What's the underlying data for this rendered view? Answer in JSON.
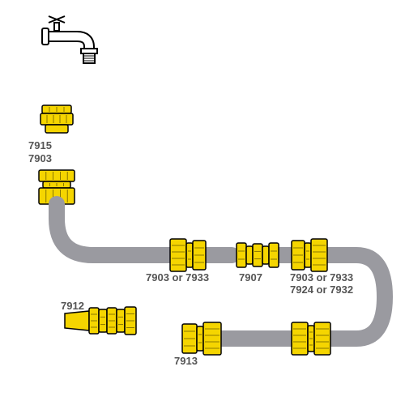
{
  "diagram": {
    "type": "infographic",
    "background_color": "#ffffff",
    "hose_color": "#9a9aa0",
    "hose_stroke_width": 20,
    "brass_fill": "#f5d500",
    "brass_stroke": "#000000",
    "tap_stroke": "#000000",
    "label_color": "#555555",
    "label_fontsize": 13,
    "label_fontweight": "bold"
  },
  "labels": {
    "l_7915": "7915",
    "l_7903": "7903",
    "l_7903_or_7933_left": "7903 or 7933",
    "l_7907": "7907",
    "l_7903_or_7933_right": "7903 or 7933",
    "l_7912": "7912",
    "l_7913": "7913",
    "l_7924_or_7932": "7924 or 7932"
  }
}
